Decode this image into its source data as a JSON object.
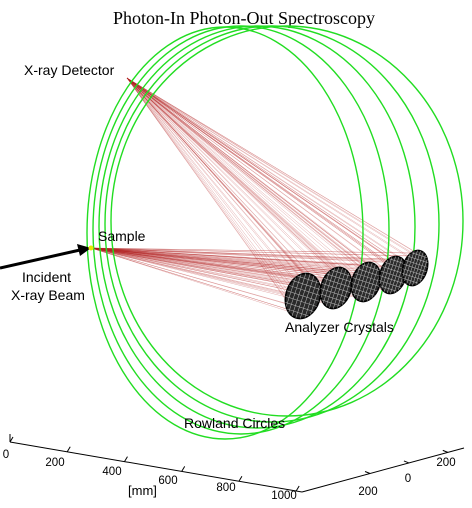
{
  "title": "Photon-In Photon-Out Spectroscopy",
  "labels": {
    "detector": "X-ray Detector",
    "sample": "Sample",
    "incident_line1": "Incident",
    "incident_line2": "X-ray Beam",
    "analyzers": "Analyzer Crystals",
    "rowland": "Rowland Circles"
  },
  "axes": {
    "x_ticks": [
      "0",
      "200",
      "400",
      "600",
      "800",
      "1000"
    ],
    "x_unit": "[mm]",
    "y_ticks": [
      "200",
      "0",
      "200"
    ]
  },
  "colors": {
    "rowland_circle": "#22dd22",
    "ray": "#b22222",
    "crystal": "#000000",
    "axis": "#000000",
    "background": "#ffffff"
  },
  "crystal_count": 5,
  "rowland_circle_count": 5
}
